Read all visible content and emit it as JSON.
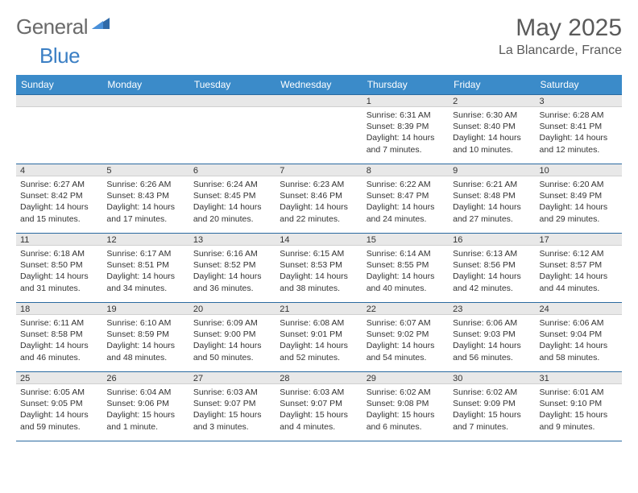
{
  "brand": {
    "part1": "General",
    "part2": "Blue"
  },
  "title": "May 2025",
  "location": "La Blancarde, France",
  "colors": {
    "header_bg": "#3b8bc9",
    "header_border": "#2a6aa0",
    "daynum_bg": "#e8e8e8",
    "text": "#333333",
    "logo_gray": "#6a6a6a",
    "logo_blue": "#3b7fc4"
  },
  "dayHeaders": [
    "Sunday",
    "Monday",
    "Tuesday",
    "Wednesday",
    "Thursday",
    "Friday",
    "Saturday"
  ],
  "weeks": [
    [
      {
        "n": "",
        "sr": "",
        "ss": "",
        "dl": ""
      },
      {
        "n": "",
        "sr": "",
        "ss": "",
        "dl": ""
      },
      {
        "n": "",
        "sr": "",
        "ss": "",
        "dl": ""
      },
      {
        "n": "",
        "sr": "",
        "ss": "",
        "dl": ""
      },
      {
        "n": "1",
        "sr": "Sunrise: 6:31 AM",
        "ss": "Sunset: 8:39 PM",
        "dl": "Daylight: 14 hours and 7 minutes."
      },
      {
        "n": "2",
        "sr": "Sunrise: 6:30 AM",
        "ss": "Sunset: 8:40 PM",
        "dl": "Daylight: 14 hours and 10 minutes."
      },
      {
        "n": "3",
        "sr": "Sunrise: 6:28 AM",
        "ss": "Sunset: 8:41 PM",
        "dl": "Daylight: 14 hours and 12 minutes."
      }
    ],
    [
      {
        "n": "4",
        "sr": "Sunrise: 6:27 AM",
        "ss": "Sunset: 8:42 PM",
        "dl": "Daylight: 14 hours and 15 minutes."
      },
      {
        "n": "5",
        "sr": "Sunrise: 6:26 AM",
        "ss": "Sunset: 8:43 PM",
        "dl": "Daylight: 14 hours and 17 minutes."
      },
      {
        "n": "6",
        "sr": "Sunrise: 6:24 AM",
        "ss": "Sunset: 8:45 PM",
        "dl": "Daylight: 14 hours and 20 minutes."
      },
      {
        "n": "7",
        "sr": "Sunrise: 6:23 AM",
        "ss": "Sunset: 8:46 PM",
        "dl": "Daylight: 14 hours and 22 minutes."
      },
      {
        "n": "8",
        "sr": "Sunrise: 6:22 AM",
        "ss": "Sunset: 8:47 PM",
        "dl": "Daylight: 14 hours and 24 minutes."
      },
      {
        "n": "9",
        "sr": "Sunrise: 6:21 AM",
        "ss": "Sunset: 8:48 PM",
        "dl": "Daylight: 14 hours and 27 minutes."
      },
      {
        "n": "10",
        "sr": "Sunrise: 6:20 AM",
        "ss": "Sunset: 8:49 PM",
        "dl": "Daylight: 14 hours and 29 minutes."
      }
    ],
    [
      {
        "n": "11",
        "sr": "Sunrise: 6:18 AM",
        "ss": "Sunset: 8:50 PM",
        "dl": "Daylight: 14 hours and 31 minutes."
      },
      {
        "n": "12",
        "sr": "Sunrise: 6:17 AM",
        "ss": "Sunset: 8:51 PM",
        "dl": "Daylight: 14 hours and 34 minutes."
      },
      {
        "n": "13",
        "sr": "Sunrise: 6:16 AM",
        "ss": "Sunset: 8:52 PM",
        "dl": "Daylight: 14 hours and 36 minutes."
      },
      {
        "n": "14",
        "sr": "Sunrise: 6:15 AM",
        "ss": "Sunset: 8:53 PM",
        "dl": "Daylight: 14 hours and 38 minutes."
      },
      {
        "n": "15",
        "sr": "Sunrise: 6:14 AM",
        "ss": "Sunset: 8:55 PM",
        "dl": "Daylight: 14 hours and 40 minutes."
      },
      {
        "n": "16",
        "sr": "Sunrise: 6:13 AM",
        "ss": "Sunset: 8:56 PM",
        "dl": "Daylight: 14 hours and 42 minutes."
      },
      {
        "n": "17",
        "sr": "Sunrise: 6:12 AM",
        "ss": "Sunset: 8:57 PM",
        "dl": "Daylight: 14 hours and 44 minutes."
      }
    ],
    [
      {
        "n": "18",
        "sr": "Sunrise: 6:11 AM",
        "ss": "Sunset: 8:58 PM",
        "dl": "Daylight: 14 hours and 46 minutes."
      },
      {
        "n": "19",
        "sr": "Sunrise: 6:10 AM",
        "ss": "Sunset: 8:59 PM",
        "dl": "Daylight: 14 hours and 48 minutes."
      },
      {
        "n": "20",
        "sr": "Sunrise: 6:09 AM",
        "ss": "Sunset: 9:00 PM",
        "dl": "Daylight: 14 hours and 50 minutes."
      },
      {
        "n": "21",
        "sr": "Sunrise: 6:08 AM",
        "ss": "Sunset: 9:01 PM",
        "dl": "Daylight: 14 hours and 52 minutes."
      },
      {
        "n": "22",
        "sr": "Sunrise: 6:07 AM",
        "ss": "Sunset: 9:02 PM",
        "dl": "Daylight: 14 hours and 54 minutes."
      },
      {
        "n": "23",
        "sr": "Sunrise: 6:06 AM",
        "ss": "Sunset: 9:03 PM",
        "dl": "Daylight: 14 hours and 56 minutes."
      },
      {
        "n": "24",
        "sr": "Sunrise: 6:06 AM",
        "ss": "Sunset: 9:04 PM",
        "dl": "Daylight: 14 hours and 58 minutes."
      }
    ],
    [
      {
        "n": "25",
        "sr": "Sunrise: 6:05 AM",
        "ss": "Sunset: 9:05 PM",
        "dl": "Daylight: 14 hours and 59 minutes."
      },
      {
        "n": "26",
        "sr": "Sunrise: 6:04 AM",
        "ss": "Sunset: 9:06 PM",
        "dl": "Daylight: 15 hours and 1 minute."
      },
      {
        "n": "27",
        "sr": "Sunrise: 6:03 AM",
        "ss": "Sunset: 9:07 PM",
        "dl": "Daylight: 15 hours and 3 minutes."
      },
      {
        "n": "28",
        "sr": "Sunrise: 6:03 AM",
        "ss": "Sunset: 9:07 PM",
        "dl": "Daylight: 15 hours and 4 minutes."
      },
      {
        "n": "29",
        "sr": "Sunrise: 6:02 AM",
        "ss": "Sunset: 9:08 PM",
        "dl": "Daylight: 15 hours and 6 minutes."
      },
      {
        "n": "30",
        "sr": "Sunrise: 6:02 AM",
        "ss": "Sunset: 9:09 PM",
        "dl": "Daylight: 15 hours and 7 minutes."
      },
      {
        "n": "31",
        "sr": "Sunrise: 6:01 AM",
        "ss": "Sunset: 9:10 PM",
        "dl": "Daylight: 15 hours and 9 minutes."
      }
    ]
  ]
}
